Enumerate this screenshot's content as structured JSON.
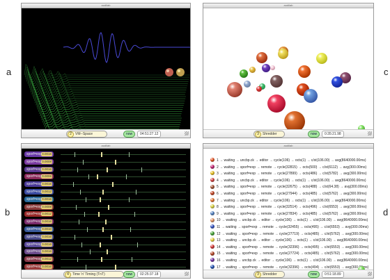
{
  "panel_labels": {
    "a": "a",
    "b": "b",
    "c": "c",
    "d": "d"
  },
  "windows": {
    "a": {
      "title": "audilab",
      "status_num": "2",
      "status_label": "VM--Space",
      "now_label": "now",
      "time": "04:51:27.12"
    },
    "b": {
      "title": "audilab",
      "status_num": "4",
      "status_label": "Time 'n' Timing (TnT)",
      "now_label": "now",
      "time": "02:25:37.18"
    },
    "c": {
      "title": "audilab",
      "status_num": "3",
      "status_label": "Shredder",
      "now_label": "now",
      "time": "0:35:21.98"
    },
    "d": {
      "title": "audilab",
      "status_num": "3",
      "status_label": "Shredder",
      "now_label": "now",
      "time": "0:51:18.89"
    }
  },
  "tnt_tracks": [
    {
      "name": "sporf=exp",
      "value": "0.0016",
      "color": "#6a3aa8"
    },
    {
      "name": "sporf=exp",
      "value": "0.0008",
      "color": "#7a3aa0"
    },
    {
      "name": "sporf=exp",
      "value": "0.0016",
      "color": "#5a3a90"
    },
    {
      "name": "sporf=exp",
      "value": "0.0006",
      "color": "#8a2a5a"
    },
    {
      "name": "sporf=exp",
      "value": "0.0016",
      "color": "#4a3a98"
    },
    {
      "name": "sporf=exp",
      "value": "0.0012",
      "color": "#3a4aa0"
    },
    {
      "name": "sporf=exp",
      "value": "0.0016",
      "color": "#2a6a9a"
    },
    {
      "name": "sporf=exp",
      "value": "0.0008",
      "color": "#8a3a3a"
    },
    {
      "name": "sporf=exp",
      "value": "0.0012",
      "color": "#9a2a2a"
    },
    {
      "name": "sporf=exp",
      "value": "0.0016",
      "color": "#7a2a6a"
    },
    {
      "name": "sporf=exp",
      "value": "0.0010",
      "color": "#3a5a9a"
    },
    {
      "name": "sporf=exp",
      "value": "0.0016",
      "color": "#4a4a8a"
    },
    {
      "name": "sporf=exp",
      "value": "0.0016",
      "color": "#5a4a9a"
    },
    {
      "name": "sporf=exp",
      "value": "0.0016",
      "color": "#6a4a8a"
    },
    {
      "name": "sporf=exp",
      "value": "0.0012",
      "color": "#8a3a4a"
    },
    {
      "name": "sporf=exp",
      "value": "0.0016",
      "color": "#9a3a3a"
    }
  ],
  "shredder_list": [
    {
      "text": "1 → waiting → uncbp.ck → editor → cycle(106) → octs(1) → c/st(106.00) → avg(8640000.00ms)",
      "color": "#e05020"
    },
    {
      "text": "2 → waiting → sporf=exp → remote → cycle(32815) → octs(500) → c/st(6112) → avg(300.00ms)",
      "color": "#c02070"
    },
    {
      "text": "3 → waiting → sporf=exp → remote → cycle(27899) → octs(486) → c/st(5782) → avg(300.00ms)",
      "color": "#e8c020"
    },
    {
      "text": "4 → waiting → uncbp.ck → editor → cycle(106) → octs(1) → c/st(106.00) → avg(8640000.00ms)",
      "color": "#d04040"
    },
    {
      "text": "5 → waiting → sporf=exp → remote → cycle(32675) → octs(488) → c/st(64.38) → avg(300.00ms)",
      "color": "#a05030"
    },
    {
      "text": "6 → waiting → sporf=exp → remote → cycle(27944) → octs(485) → c/st(5762) → avg(300.00ms)",
      "color": "#c04020"
    },
    {
      "text": "7 → waiting → uncbp.ck → editor → cycle(106) → octs(1) → c/st(106.00) → avg(8640000.00ms)",
      "color": "#e07030"
    },
    {
      "text": "8 → waiting → sporf=exp → remote → cycle(32514) → octs(496) → c/st(6553) → avg(300.00ms)",
      "color": "#d8d040"
    },
    {
      "text": "9 → waiting → sporf=exp → remote → cycle(27834) → octs(485) → c/st(5762) → avg(300.00ms)",
      "color": "#5080c0"
    },
    {
      "text": "10 → waiting → uncbp.ck → editor → cycle(106) → octs(1) → c/st(106.00) → avg(8640000.00ms)",
      "color": "#e09060"
    },
    {
      "text": "11 → waiting → sporf=exp → remote → cycle(32455) → octs(495) → c/st(6553) → avg(300.00ms)",
      "color": "#3050c0"
    },
    {
      "text": "12 → waiting → sporf=exp → remote → cycle(27719) → octs(485) → c/st(5762) → avg(300.00ms)",
      "color": "#40a030"
    },
    {
      "text": "13 → waiting → uncbp.ck → editor → cycle(106) → octs(1) → c/st(106.00) → avg(8640000.00ms)",
      "color": "#e8d040"
    },
    {
      "text": "14 → waiting → sporf=exp → remote → cycle(32396) → octs(495) → c/st(6553) → avg(300.00ms)",
      "color": "#d03030"
    },
    {
      "text": "15 → waiting → sporf=exp → remote → cycle(27724) → octs(485) → c/st(5762) → avg(300.00ms)",
      "color": "#b04020"
    },
    {
      "text": "16 → waiting → uncbp.ck → editor → cycle(106) → octs(1) → c/st(106.00) → avg(8640000.00ms)",
      "color": "#7030a0"
    },
    {
      "text": "17 → waiting → sporf=exp → remote → cycle(32396) → octs(494) → c/st(6553) → avg(300.00ms)",
      "color": "#2050b0"
    }
  ],
  "colors": {
    "waterfall": "#3cb043",
    "wave": "#4a4ad8",
    "tnt_grid": "#2f4f2f",
    "now_green": "#a8e8a0"
  }
}
